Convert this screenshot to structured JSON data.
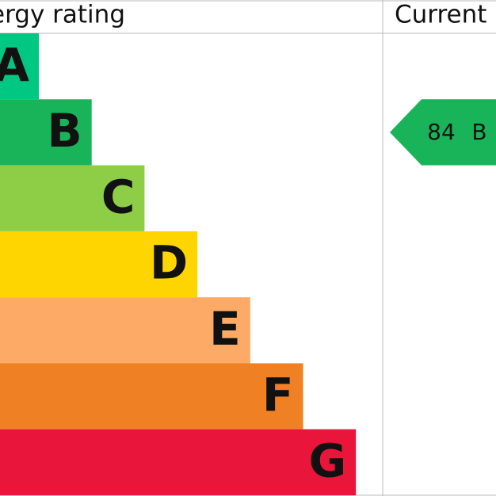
{
  "header": {
    "title": "Energy rating",
    "current": "Current"
  },
  "bands": [
    {
      "label": "A",
      "color": "#00c781"
    },
    {
      "label": "B",
      "color": "#19b459"
    },
    {
      "label": "C",
      "color": "#8dce46"
    },
    {
      "label": "D",
      "color": "#ffd500"
    },
    {
      "label": "E",
      "color": "#fcaa65"
    },
    {
      "label": "F",
      "color": "#ef8023"
    },
    {
      "label": "G",
      "color": "#e9153b"
    }
  ],
  "current": {
    "score": "84",
    "band": "B",
    "color": "#19b459"
  }
}
